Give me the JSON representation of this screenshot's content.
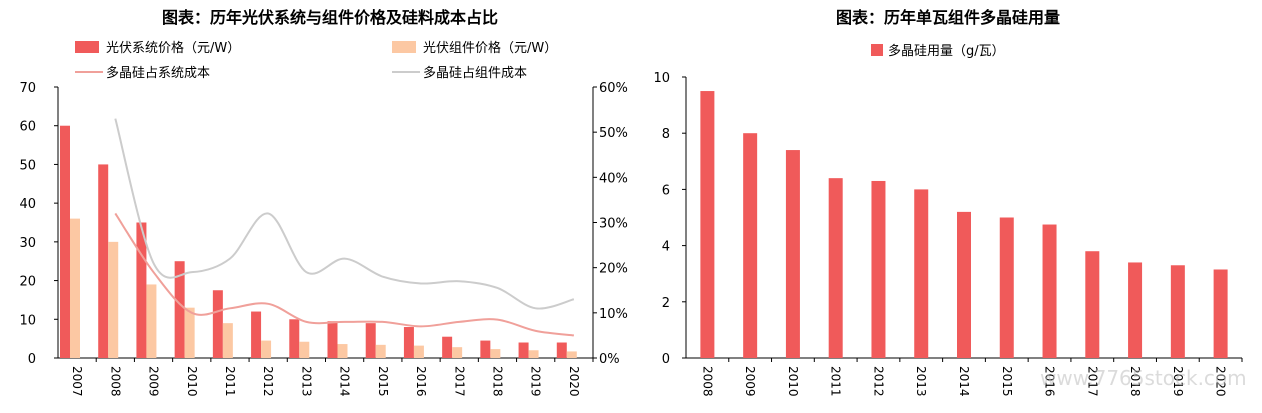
{
  "colors": {
    "red": "#f05a5a",
    "peach": "#fcc8a3",
    "pink_line": "#f0a09a",
    "gray_line": "#cccccc"
  },
  "watermark": "www.7765stock.com",
  "chart_data": [
    {
      "type": "bar",
      "title": "图表：历年光伏系统与组件价格及硅料成本占比",
      "categories": [
        "2007",
        "2008",
        "2009",
        "2010",
        "2011",
        "2012",
        "2013",
        "2014",
        "2015",
        "2016",
        "2017",
        "2018",
        "2019",
        "2020"
      ],
      "ylim": [
        0,
        70
      ],
      "yticks": [
        0,
        10,
        20,
        30,
        40,
        50,
        60,
        70
      ],
      "y2lim": [
        0,
        0.6
      ],
      "y2ticks": [
        "0%",
        "10%",
        "20%",
        "30%",
        "40%",
        "50%",
        "60%"
      ],
      "series": [
        {
          "name": "光伏系统价格（元/W）",
          "kind": "bar",
          "axis": "left",
          "color": "#f05a5a",
          "values": [
            60,
            50,
            35,
            25,
            17.5,
            12,
            10,
            9.5,
            9,
            8,
            5.5,
            4.5,
            4,
            4
          ]
        },
        {
          "name": "光伏组件价格（元/W）",
          "kind": "bar",
          "axis": "left",
          "color": "#fcc8a3",
          "values": [
            36,
            30,
            19,
            13,
            9,
            4.5,
            4.2,
            3.6,
            3.4,
            3.2,
            2.8,
            2.3,
            2.0,
            1.7
          ]
        },
        {
          "name": "多晶硅占系统成本",
          "kind": "line",
          "axis": "right",
          "color": "#f0a09a",
          "values": [
            null,
            0.32,
            0.19,
            0.1,
            0.11,
            0.12,
            0.08,
            0.08,
            0.08,
            0.07,
            0.08,
            0.085,
            0.06,
            0.05
          ]
        },
        {
          "name": "多晶硅占组件成本",
          "kind": "line",
          "axis": "right",
          "color": "#cccccc",
          "values": [
            null,
            0.53,
            0.21,
            0.19,
            0.22,
            0.32,
            0.19,
            0.22,
            0.18,
            0.165,
            0.17,
            0.155,
            0.11,
            0.13
          ]
        }
      ]
    },
    {
      "type": "bar",
      "title": "图表：历年单瓦组件多晶硅用量",
      "categories": [
        "2008",
        "2009",
        "2010",
        "2011",
        "2012",
        "2013",
        "2014",
        "2015",
        "2016",
        "2017",
        "2018",
        "2019",
        "2020"
      ],
      "ylim": [
        0,
        10
      ],
      "yticks": [
        0,
        2,
        4,
        6,
        8,
        10
      ],
      "series": [
        {
          "name": "多晶硅用量（g/瓦）",
          "color": "#f05a5a",
          "values": [
            9.5,
            8.0,
            7.4,
            6.4,
            6.3,
            6.0,
            5.2,
            5.0,
            4.75,
            3.8,
            3.4,
            3.3,
            3.15
          ]
        }
      ]
    }
  ]
}
